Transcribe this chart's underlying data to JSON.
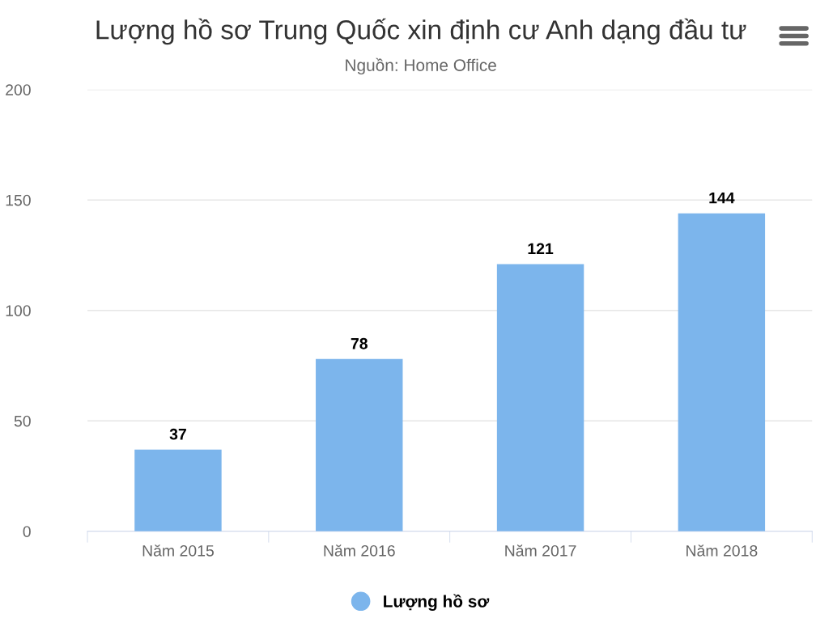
{
  "chart_data": {
    "type": "bar",
    "title": "Lượng hồ sơ Trung Quốc xin định cư Anh dạng đầu tư",
    "subtitle": "Nguồn: Home Office",
    "categories": [
      "Năm 2015",
      "Năm 2016",
      "Năm 2017",
      "Năm 2018"
    ],
    "series": [
      {
        "name": "Lượng hồ sơ",
        "color": "#7cb5ec",
        "values": [
          37,
          78,
          121,
          144
        ]
      }
    ],
    "ylim": [
      0,
      200
    ],
    "yticks": [
      0,
      50,
      100,
      150,
      200
    ],
    "grid": "y",
    "legend": "bottom",
    "data_labels": true
  }
}
